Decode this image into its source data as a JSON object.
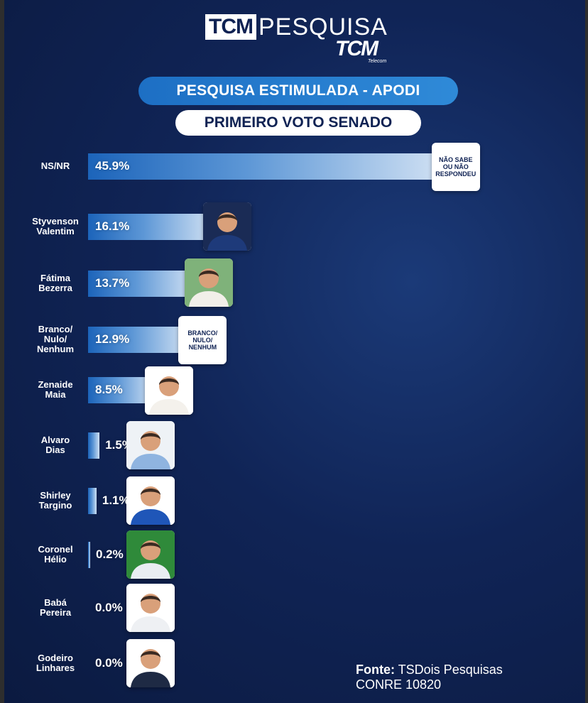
{
  "logo": {
    "brand_box": "TCM",
    "brand_rest": "PESQUISA",
    "sub_brand": "TCM",
    "sub_tiny": "Telecom"
  },
  "header": {
    "title": "PESQUISA ESTIMULADA - APODI",
    "subtitle": "PRIMEIRO VOTO SENADO"
  },
  "colors": {
    "background": "#0f2253",
    "accent_blue": "#2f8ad8",
    "bar_start": "#1c64ba",
    "bar_end": "#cfe0f3"
  },
  "chart_data": {
    "type": "bar",
    "orientation": "horizontal",
    "unit": "%",
    "categories": [
      "NS/NR",
      "Styvenson\nValentim",
      "Fátima\nBezerra",
      "Branco/\nNulo/\nNenhum",
      "Zenaide\nMaia",
      "Alvaro\nDias",
      "Shirley\nTargino",
      "Coronel\nHélio",
      "Babá\nPereira",
      "Godeiro\nLinhares"
    ],
    "values": [
      45.9,
      16.1,
      13.7,
      12.9,
      8.5,
      1.5,
      1.1,
      0.2,
      0.0,
      0.0
    ],
    "value_labels": [
      "45.9%",
      "16.1%",
      "13.7%",
      "12.9%",
      "8.5%",
      "1.5%",
      "1.1%",
      "0.2%",
      "0.0%",
      "0.0%"
    ],
    "markers": [
      {
        "kind": "text",
        "text": "NÃO SABE\nOU NÃO\nRESPONDEU"
      },
      {
        "kind": "photo",
        "icon": "candidate-photo-icon",
        "shirt": "#1e3a7a",
        "bg": "#1a2b55"
      },
      {
        "kind": "photo",
        "icon": "candidate-photo-icon",
        "shirt": "#f2efe9",
        "bg": "#7fb27a"
      },
      {
        "kind": "text",
        "text": "BRANCO/\nNULO/\nNENHUM"
      },
      {
        "kind": "photo",
        "icon": "candidate-photo-icon",
        "shirt": "#f4f1ec",
        "bg": "#ffffff"
      },
      {
        "kind": "photo",
        "icon": "candidate-photo-icon",
        "shirt": "#8fb4e0",
        "bg": "#eef2f6"
      },
      {
        "kind": "photo",
        "icon": "candidate-photo-icon",
        "shirt": "#1f56b8",
        "bg": "#ffffff"
      },
      {
        "kind": "photo",
        "icon": "candidate-photo-icon",
        "shirt": "#e9edf2",
        "bg": "#2f8a3a"
      },
      {
        "kind": "photo",
        "icon": "candidate-photo-icon",
        "shirt": "#eef0f3",
        "bg": "#ffffff"
      },
      {
        "kind": "photo",
        "icon": "candidate-photo-icon",
        "shirt": "#1e2a44",
        "bg": "#ffffff"
      }
    ],
    "grid": false,
    "legend": "none"
  },
  "source": {
    "label": "Fonte:",
    "name": "TSDois Pesquisas",
    "registration": "CONRE 10820"
  }
}
